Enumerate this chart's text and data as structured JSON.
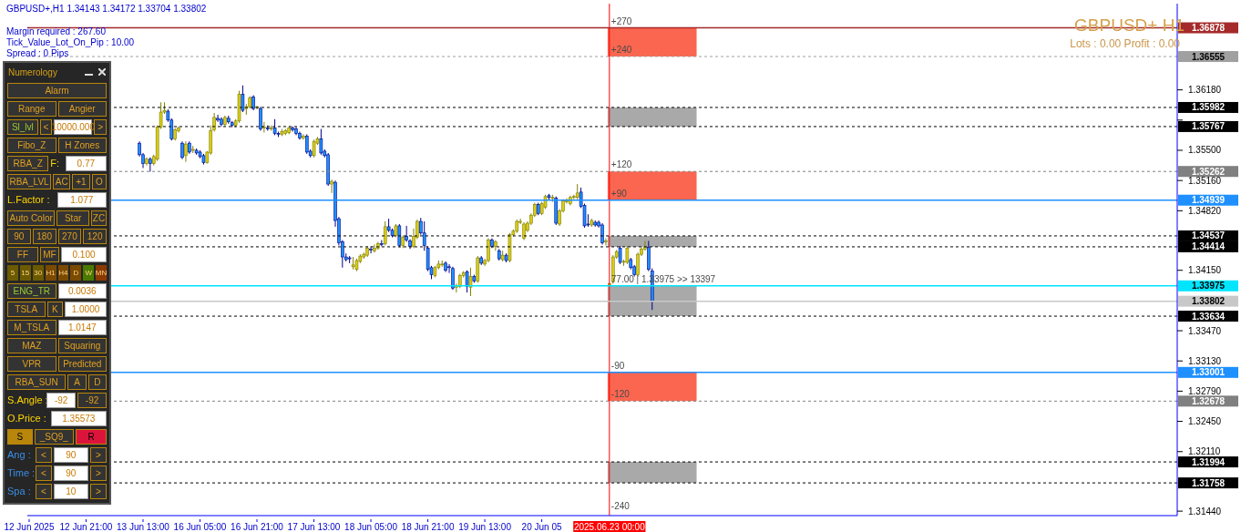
{
  "chart_data": {
    "type": "candlestick",
    "title": "GBPUSD+,H1  1.34143 1.34172 1.33704 1.33802",
    "annotations": [
      "Margin required : 267.60",
      "Tick_Value_Lot_On_Pip : 10.00",
      "Spread : 0  Pips",
      "GBPUSD+ H1",
      "Lots : 0.00 Profit : 0.00",
      "Numerology",
      "Alarm",
      "Range",
      "Angier",
      "Sl_lvl",
      "<",
      "10000.000",
      ">",
      "Fibo_Z",
      "H Zones",
      "RBA_Z",
      "F:",
      "0.77",
      "RBA_LVL",
      "AC",
      "+1",
      "O",
      "L.Factor :",
      "1.077",
      "Auto Color",
      "Star",
      "ZC",
      "90",
      "180",
      "270",
      "120",
      "FF",
      "MF",
      "0.100",
      "5",
      "15",
      "30",
      "H1",
      "H4",
      "D",
      "W",
      "MN",
      "ENG_TR",
      "0.0036",
      "TSLA",
      "K",
      "1.0000",
      "M_TSLA",
      "1.0147",
      "MAZ",
      "Squaring",
      "VPR",
      "Predicted",
      "RBA_SUN",
      "A",
      "D",
      "S.Angle :",
      "-92",
      "-92",
      "O.Price :",
      "1.35573",
      "S",
      "_SQ9_",
      "R",
      "Ang :",
      "<",
      "90",
      ">",
      "Time :",
      "<",
      "90",
      ">",
      "Spa :",
      "<",
      "10",
      ">",
      {
        "text": "+270",
        "x": "2025.06.23 00:00",
        "y": 1.36878
      },
      {
        "text": "+240",
        "x": "2025.06.23 00:00",
        "y": 1.36555
      },
      {
        "text": "+120",
        "x": "2025.06.23 00:00",
        "y": 1.35262
      },
      {
        "text": "+90",
        "x": "2025.06.23 00:00",
        "y": 1.34939
      },
      {
        "text": "77.00 | 1.33975  >> 13397",
        "x": "2025.06.23 00:00",
        "y": 1.33975
      },
      {
        "text": "-90",
        "x": "2025.06.23 00:00",
        "y": 1.33001
      },
      {
        "text": "-120",
        "x": "2025.06.23 00:00",
        "y": 1.32678
      },
      {
        "text": "-240",
        "x": "2025.06.23 00:00",
        "y": 1.3142
      }
    ],
    "categories": [
      "12 Jun 2025",
      null,
      null,
      null,
      null,
      null,
      null,
      null,
      null,
      null,
      null,
      null,
      null,
      null,
      null,
      null,
      "12 Jun 21:00",
      null,
      null,
      null,
      null,
      null,
      null,
      null,
      null,
      null,
      null,
      null,
      null,
      null,
      null,
      null,
      "13 Jun 13:00",
      null,
      null,
      null,
      null,
      null,
      null,
      null,
      null,
      null,
      null,
      null,
      null,
      null,
      null,
      null,
      "16 Jun 05:00",
      null,
      null,
      null,
      null,
      null,
      null,
      null,
      null,
      null,
      null,
      null,
      null,
      null,
      null,
      null,
      "16 Jun 21:00",
      null,
      null,
      null,
      null,
      null,
      null,
      null,
      null,
      null,
      null,
      null,
      null,
      null,
      null,
      null,
      "17 Jun 13:00",
      null,
      null,
      null,
      null,
      null,
      null,
      null,
      null,
      null,
      null,
      null,
      null,
      null,
      null,
      null,
      "18 Jun 05:00",
      null,
      null,
      null,
      null,
      null,
      null,
      null,
      null,
      null,
      null,
      null,
      null,
      null,
      null,
      null,
      "18 Jun 21:00",
      null,
      null,
      null,
      null,
      null,
      null,
      null,
      null,
      null,
      null,
      null,
      null,
      null,
      null,
      null,
      "19 Jun 13:00",
      null,
      null,
      null,
      null,
      null,
      null,
      null,
      null,
      null,
      null,
      null,
      null,
      null,
      null,
      null,
      "20 Jun 05",
      null,
      null,
      null,
      null,
      null,
      null,
      null,
      null,
      null,
      null,
      null,
      null,
      null,
      null,
      null,
      null,
      null,
      null,
      "2025.06.23 00:00",
      null,
      null,
      null,
      null,
      null,
      null,
      null,
      null,
      null,
      null,
      null,
      null,
      null,
      null,
      null,
      null,
      null,
      null,
      null,
      null,
      null,
      null,
      null,
      null,
      null,
      null,
      null,
      null,
      null,
      null,
      null,
      null,
      null,
      null,
      null,
      null,
      null,
      null,
      null,
      null,
      null,
      null,
      null,
      null,
      null,
      null,
      null,
      null,
      null,
      null,
      null,
      null,
      null,
      null,
      null,
      null,
      null,
      null,
      null,
      null,
      null,
      null,
      null,
      null,
      null,
      null,
      null,
      null,
      null,
      null,
      null,
      null,
      null,
      null,
      null,
      null,
      null,
      null,
      null,
      null,
      null,
      null,
      null,
      null,
      null,
      null,
      null,
      null,
      null,
      null,
      null,
      null,
      null,
      null,
      null,
      null,
      null,
      null,
      null,
      null,
      null,
      null,
      null,
      null,
      null,
      null,
      null,
      null,
      null,
      null,
      null,
      null,
      null,
      null,
      null,
      null,
      null,
      null,
      null,
      null,
      null,
      null,
      null,
      null,
      null,
      null,
      null,
      null,
      null,
      null,
      null,
      null,
      null,
      null,
      null,
      null,
      null,
      null,
      null,
      null,
      null,
      null,
      null,
      null,
      null,
      null,
      null,
      null,
      null,
      null,
      null,
      null,
      null,
      null,
      null,
      null,
      null,
      null,
      null
    ],
    "ohlc": [
      null,
      null,
      null,
      null,
      null,
      null,
      null,
      null,
      null,
      null,
      null,
      null,
      null,
      null,
      null,
      null,
      null,
      null,
      null,
      null,
      null,
      null,
      null,
      null,
      null,
      null,
      null,
      null,
      null,
      null,
      null,
      [
        1.3558,
        1.356,
        1.3543,
        1.3545
      ],
      [
        1.3545,
        1.3547,
        1.353,
        1.3535
      ],
      [
        1.3535,
        1.3542,
        1.3533,
        1.354
      ],
      [
        1.354,
        1.3542,
        1.3526,
        1.3535
      ],
      [
        1.3535,
        1.3545,
        1.3533,
        1.3543
      ],
      [
        1.354,
        1.3578,
        1.3538,
        1.3576
      ],
      [
        1.3576,
        1.3604,
        1.3574,
        1.3593
      ],
      [
        1.3593,
        1.3604,
        1.3591,
        1.3595
      ],
      [
        1.3594,
        1.3596,
        1.3582,
        1.3584
      ],
      [
        1.3584,
        1.3586,
        1.3561,
        1.3563
      ],
      [
        1.3563,
        1.3575,
        1.3561,
        1.3573
      ],
      [
        1.3572,
        1.3577,
        1.357,
        1.3575
      ],
      [
        1.3558,
        1.356,
        1.354,
        1.3542
      ],
      [
        1.3544,
        1.356,
        1.3537,
        1.3557
      ],
      [
        1.3558,
        1.356,
        1.3546,
        1.3548
      ],
      [
        1.355,
        1.3555,
        1.3547,
        1.3551
      ],
      [
        1.355,
        1.3552,
        1.3545,
        1.3547
      ],
      [
        1.3548,
        1.355,
        1.3541,
        1.3543
      ],
      [
        1.3544,
        1.3546,
        1.3534,
        1.3536
      ],
      [
        1.3536,
        1.3549,
        1.3535,
        1.3548
      ],
      [
        1.3547,
        1.3578,
        1.3545,
        1.3572
      ],
      [
        1.3573,
        1.3592,
        1.3571,
        1.3587
      ],
      [
        1.3586,
        1.359,
        1.3582,
        1.3584
      ],
      [
        1.3585,
        1.3587,
        1.3577,
        1.3579
      ],
      [
        1.3579,
        1.3589,
        1.3577,
        1.3587
      ],
      [
        1.3586,
        1.3589,
        1.358,
        1.3582
      ],
      [
        1.3581,
        1.3583,
        1.3576,
        1.3578
      ],
      [
        1.3578,
        1.3585,
        1.3576,
        1.3583
      ],
      [
        1.3583,
        1.3617,
        1.3581,
        1.3613
      ],
      [
        1.3613,
        1.3623,
        1.3593,
        1.3595
      ],
      [
        1.3597,
        1.3602,
        1.359,
        1.3599
      ],
      [
        1.3599,
        1.3611,
        1.3597,
        1.3609
      ],
      [
        1.361,
        1.3612,
        1.3595,
        1.3597
      ],
      [
        1.3598,
        1.36,
        1.3596,
        1.3599
      ],
      [
        1.3597,
        1.3599,
        1.3572,
        1.3574
      ],
      [
        1.3575,
        1.3582,
        1.357,
        1.3576
      ],
      [
        1.3575,
        1.3578,
        1.3572,
        1.3574
      ],
      [
        1.3574,
        1.3578,
        1.3572,
        1.3575
      ],
      [
        1.3575,
        1.3585,
        1.3567,
        1.3569
      ],
      [
        1.3569,
        1.3571,
        1.3565,
        1.3568
      ],
      [
        1.3568,
        1.3574,
        1.3566,
        1.3571
      ],
      [
        1.3569,
        1.3574,
        1.3567,
        1.3572
      ],
      [
        1.357,
        1.3577,
        1.3568,
        1.3575
      ],
      [
        1.3575,
        1.3577,
        1.3571,
        1.3573
      ],
      [
        1.3574,
        1.3576,
        1.3567,
        1.3569
      ],
      [
        1.3569,
        1.3571,
        1.3562,
        1.3564
      ],
      [
        1.3564,
        1.3568,
        1.3562,
        1.3566
      ],
      [
        1.3566,
        1.3568,
        1.3546,
        1.3548
      ],
      [
        1.3549,
        1.3551,
        1.3542,
        1.3544
      ],
      [
        1.3544,
        1.3562,
        1.3542,
        1.356
      ],
      [
        1.3558,
        1.3565,
        1.3556,
        1.3563
      ],
      [
        1.3563,
        1.3574,
        1.3545,
        1.3547
      ],
      [
        1.3549,
        1.3551,
        1.3542,
        1.3544
      ],
      [
        1.3545,
        1.3547,
        1.351,
        1.3512
      ],
      [
        1.3512,
        1.3517,
        1.3502,
        1.3515
      ],
      [
        1.3514,
        1.3516,
        1.3464,
        1.3471
      ],
      [
        1.3473,
        1.3475,
        1.3443,
        1.3446
      ],
      [
        1.3447,
        1.3449,
        1.3418,
        1.343
      ],
      [
        1.343,
        1.3434,
        1.3425,
        1.3427
      ],
      [
        1.3429,
        1.3431,
        1.3423,
        1.3428
      ],
      [
        1.3419,
        1.343,
        1.3416,
        1.3421
      ],
      [
        1.3416,
        1.3428,
        1.3414,
        1.3426
      ],
      [
        1.3425,
        1.3433,
        1.3423,
        1.3431
      ],
      [
        1.343,
        1.3435,
        1.3428,
        1.3433
      ],
      [
        1.3432,
        1.3442,
        1.343,
        1.344
      ],
      [
        1.3439,
        1.3442,
        1.3434,
        1.3438
      ],
      [
        1.3437,
        1.3444,
        1.3435,
        1.344
      ],
      [
        1.344,
        1.3447,
        1.3438,
        1.3445
      ],
      [
        1.3445,
        1.3449,
        1.3442,
        1.3444
      ],
      [
        1.3445,
        1.347,
        1.3443,
        1.3464
      ],
      [
        1.3464,
        1.3473,
        1.3458,
        1.346
      ],
      [
        1.346,
        1.3462,
        1.3452,
        1.3454
      ],
      [
        1.3454,
        1.3467,
        1.3452,
        1.3465
      ],
      [
        1.3465,
        1.3467,
        1.3441,
        1.3443
      ],
      [
        1.3443,
        1.3454,
        1.344,
        1.3452
      ],
      [
        1.3453,
        1.3465,
        1.3447,
        1.3449
      ],
      [
        1.3448,
        1.345,
        1.3439,
        1.3442
      ],
      [
        1.3442,
        1.3462,
        1.344,
        1.3453
      ],
      [
        1.3452,
        1.3472,
        1.345,
        1.347
      ],
      [
        1.347,
        1.3474,
        1.3455,
        1.3457
      ],
      [
        1.3457,
        1.347,
        1.3437,
        1.3443
      ],
      [
        1.344,
        1.3442,
        1.3414,
        1.3416
      ],
      [
        1.3418,
        1.342,
        1.3405,
        1.341
      ],
      [
        1.3409,
        1.342,
        1.3407,
        1.3418
      ],
      [
        1.3418,
        1.3426,
        1.3416,
        1.3422
      ],
      [
        1.3421,
        1.3426,
        1.3419,
        1.3422
      ],
      [
        1.3423,
        1.3425,
        1.3413,
        1.3415
      ],
      [
        1.3419,
        1.3422,
        1.3412,
        1.3418
      ],
      [
        1.3417,
        1.3419,
        1.3393,
        1.3395
      ],
      [
        1.3396,
        1.34,
        1.339,
        1.3398
      ],
      [
        1.3397,
        1.3411,
        1.3395,
        1.3409
      ],
      [
        1.3409,
        1.3414,
        1.3407,
        1.3412
      ],
      [
        1.3413,
        1.3415,
        1.339,
        1.3397
      ],
      [
        1.3396,
        1.3418,
        1.3386,
        1.3408
      ],
      [
        1.3408,
        1.341,
        1.3401,
        1.3403
      ],
      [
        1.3403,
        1.3431,
        1.3401,
        1.3429
      ],
      [
        1.3429,
        1.3431,
        1.3421,
        1.3423
      ],
      [
        1.3422,
        1.3428,
        1.342,
        1.3426
      ],
      [
        1.3426,
        1.3451,
        1.3424,
        1.3449
      ],
      [
        1.3449,
        1.3451,
        1.344,
        1.3442
      ],
      [
        1.3442,
        1.3449,
        1.3437,
        1.3447
      ],
      [
        1.3437,
        1.3439,
        1.3426,
        1.3428
      ],
      [
        1.3427,
        1.3437,
        1.3425,
        1.3432
      ],
      [
        1.3432,
        1.3434,
        1.3424,
        1.3426
      ],
      [
        1.3426,
        1.3457,
        1.3424,
        1.3455
      ],
      [
        1.3455,
        1.3461,
        1.3453,
        1.3459
      ],
      [
        1.3459,
        1.3472,
        1.3457,
        1.347
      ],
      [
        1.3469,
        1.3473,
        1.3467,
        1.347
      ],
      [
        1.3451,
        1.3469,
        1.3449,
        1.3467
      ],
      [
        1.346,
        1.347,
        1.3458,
        1.3468
      ],
      [
        1.3468,
        1.3479,
        1.3466,
        1.3477
      ],
      [
        1.3477,
        1.3491,
        1.3475,
        1.3489
      ],
      [
        1.3489,
        1.3491,
        1.3477,
        1.3479
      ],
      [
        1.3479,
        1.3492,
        1.3477,
        1.349
      ],
      [
        1.3486,
        1.35,
        1.3484,
        1.3498
      ],
      [
        1.3499,
        1.3501,
        1.3494,
        1.3497
      ],
      [
        1.3496,
        1.35,
        1.3492,
        1.3497
      ],
      [
        1.3496,
        1.3498,
        1.3466,
        1.3468
      ],
      [
        1.3467,
        1.3484,
        1.3465,
        1.3482
      ],
      [
        1.3482,
        1.3495,
        1.348,
        1.3493
      ],
      [
        1.3492,
        1.3496,
        1.349,
        1.3493
      ],
      [
        1.349,
        1.3499,
        1.3488,
        1.3497
      ],
      [
        1.3497,
        1.35,
        1.3495,
        1.3498
      ],
      [
        1.3497,
        1.3512,
        1.3495,
        1.3502
      ],
      [
        1.3503,
        1.3508,
        1.3485,
        1.3487
      ],
      [
        1.3488,
        1.349,
        1.3463,
        1.3465
      ],
      [
        1.3467,
        1.3478,
        1.3464,
        1.3466
      ],
      [
        1.3466,
        1.3473,
        1.3464,
        1.3471
      ],
      [
        1.3469,
        1.3471,
        1.3464,
        1.3466
      ],
      [
        1.3469,
        1.3471,
        1.3463,
        1.3465
      ],
      [
        1.3466,
        1.3468,
        1.3444,
        1.3446
      ],
      [
        1.3447,
        1.3451,
        1.3443,
        1.3448
      ],
      [
        1.3398,
        1.3401,
        1.3397,
        1.34
      ],
      [
        1.3402,
        1.3432,
        1.34,
        1.343
      ],
      [
        1.343,
        1.3438,
        1.3428,
        1.3436
      ],
      [
        1.344,
        1.3442,
        1.3422,
        1.3424
      ],
      [
        1.3424,
        1.3427,
        1.342,
        1.3425
      ],
      [
        1.3424,
        1.3442,
        1.3422,
        1.344
      ],
      [
        1.3427,
        1.3429,
        1.3416,
        1.3418
      ],
      [
        1.3419,
        1.3421,
        1.3408,
        1.341
      ],
      [
        1.341,
        1.3435,
        1.3408,
        1.3433
      ],
      [
        1.3433,
        1.3441,
        1.3431,
        1.3439
      ],
      [
        1.3439,
        1.3448,
        1.3437,
        1.3441
      ],
      [
        1.3441,
        1.3448,
        1.3414,
        1.3416
      ],
      [
        1.34143,
        1.34172,
        1.33704,
        1.33802
      ],
      null,
      null,
      null,
      null,
      null,
      null,
      null,
      null,
      null,
      null,
      null,
      null,
      null,
      null,
      null,
      null,
      null,
      null,
      null,
      null,
      null,
      null,
      null,
      null,
      null,
      null,
      null,
      null,
      null,
      null,
      null,
      null,
      null,
      null,
      null,
      null,
      null,
      null,
      null,
      null,
      null,
      null,
      null,
      null,
      null,
      null,
      null,
      null,
      null,
      null,
      null,
      null,
      null,
      null,
      null,
      null,
      null,
      null,
      null,
      null,
      null,
      null,
      null,
      null,
      null,
      null,
      null,
      null,
      null,
      null,
      null,
      null,
      null,
      null,
      null,
      null,
      null,
      null,
      null,
      null,
      null,
      null,
      null,
      null,
      null,
      null,
      null,
      null,
      null,
      null,
      null,
      null,
      null,
      null,
      null,
      null,
      null,
      null,
      null,
      null,
      null,
      null,
      null,
      null,
      null,
      null,
      null,
      null,
      null,
      null,
      null,
      null,
      null,
      null,
      null,
      null,
      null,
      null,
      null,
      null,
      null,
      null,
      null,
      null,
      null,
      null,
      null,
      null,
      null,
      null,
      null,
      null,
      null,
      null,
      null,
      null,
      null,
      null,
      null,
      null,
      null,
      null,
      null,
      null,
      null,
      null,
      null
    ],
    "ylim": [
      1.3139,
      1.3715
    ],
    "yticks": [
      {
        "value": 1.3618,
        "label": "1.36180"
      },
      {
        "value": 1.3584,
        "label": null
      },
      {
        "value": 1.355,
        "label": "1.35500"
      },
      {
        "value": 1.3516,
        "label": "1.35160"
      },
      {
        "value": 1.3482,
        "label": "1.34820"
      },
      {
        "value": 1.3415,
        "label": "1.34150"
      },
      {
        "value": 1.3347,
        "label": "1.33470"
      },
      {
        "value": 1.3313,
        "label": "1.33130"
      },
      {
        "value": 1.3279,
        "label": "1.32790"
      },
      {
        "value": 1.3245,
        "label": "1.32450"
      },
      {
        "value": 1.3211,
        "label": "1.32110"
      },
      {
        "value": 1.3144,
        "label": "1.31440"
      }
    ],
    "ref_lines": [
      {
        "axis": "x",
        "value": "2025.06.23 00:00",
        "color": "#ff0000",
        "line_style": "solid"
      },
      {
        "axis": "y",
        "value": 1.36878,
        "label": "1.36878",
        "color": "#a52a2a",
        "line_style": "solid"
      },
      {
        "axis": "y",
        "value": 1.36555,
        "label": "1.36555",
        "color": "#a0a0a0",
        "line_style": "dashed"
      },
      {
        "axis": "y",
        "value": 1.35982,
        "label": "1.35982",
        "color": "#000000",
        "line_style": "dashed"
      },
      {
        "axis": "y",
        "value": 1.35767,
        "label": "1.35767",
        "color": "#000000",
        "line_style": "dashed"
      },
      {
        "axis": "y",
        "value": 1.35262,
        "label": "1.35262",
        "color": "#808080",
        "line_style": "dashed"
      },
      {
        "axis": "y",
        "value": 1.34939,
        "label": "1.34939",
        "color": "#1e90ff",
        "line_style": "solid"
      },
      {
        "axis": "y",
        "value": 1.34537,
        "label": "1.34537",
        "color": "#000000",
        "line_style": "dashed"
      },
      {
        "axis": "y",
        "value": 1.34414,
        "label": "1.34414",
        "color": "#000000",
        "line_style": "dashed"
      },
      {
        "axis": "y",
        "value": 1.33975,
        "label": "1.33975",
        "color": "#00e5ff",
        "line_style": "solid"
      },
      {
        "axis": "y",
        "value": 1.33802,
        "label": "1.33802",
        "color": "#c8c8c8",
        "line_style": "solid"
      },
      {
        "axis": "y",
        "value": 1.33634,
        "label": "1.33634",
        "color": "#000000",
        "line_style": "dashed"
      },
      {
        "axis": "y",
        "value": 1.33001,
        "label": "1.33001",
        "color": "#1e90ff",
        "line_style": "solid"
      },
      {
        "axis": "y",
        "value": 1.32678,
        "label": "1.32678",
        "color": "#808080",
        "line_style": "dashed"
      },
      {
        "axis": "y",
        "value": 1.31994,
        "label": "1.31994",
        "color": "#000000",
        "line_style": "dashed"
      },
      {
        "axis": "y",
        "value": 1.31758,
        "label": "1.31758",
        "color": "#000000",
        "line_style": "dashed"
      }
    ],
    "bands": [
      {
        "axis": "y",
        "from": 1.36555,
        "to": 1.36878,
        "color": "#fa6650"
      },
      {
        "axis": "y",
        "from": 1.35767,
        "to": 1.35982,
        "color": "#a9a9a9"
      },
      {
        "axis": "y",
        "from": 1.34939,
        "to": 1.35262,
        "color": "#fa6650"
      },
      {
        "axis": "y",
        "from": 1.34414,
        "to": 1.34537,
        "color": "#a9a9a9"
      },
      {
        "axis": "y",
        "from": 1.33634,
        "to": 1.33975,
        "color": "#a9a9a9"
      },
      {
        "axis": "y",
        "from": 1.32678,
        "to": 1.33001,
        "color": "#fa6650"
      },
      {
        "axis": "y",
        "from": 1.31758,
        "to": 1.31994,
        "color": "#a9a9a9"
      }
    ]
  }
}
